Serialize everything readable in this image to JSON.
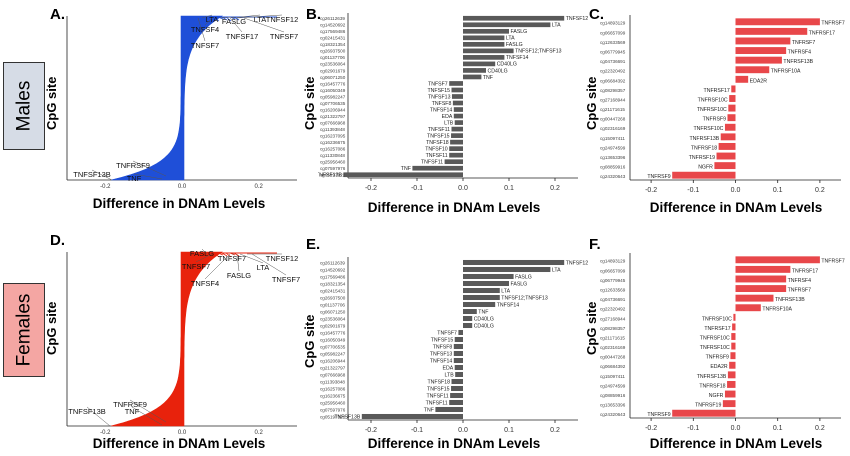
{
  "row_labels": {
    "males": "Males",
    "females": "Females"
  },
  "colors": {
    "males_fill": "#1f4fd8",
    "females_fill": "#e8220c",
    "bar_gray": "#595959",
    "bar_red": "#e8474a",
    "males_box": "#d6dce6",
    "females_box": "#f4a6a3"
  },
  "chart_data": [
    {
      "panel": "A",
      "type": "area",
      "xlabel": "Difference in DNAm Levels",
      "ylabel": "CpG site",
      "xlim": [
        -0.3,
        0.3
      ],
      "xticks": [
        "-0.2",
        "0.0",
        "0.2"
      ],
      "annotations": [
        "LTA",
        "FASLG",
        "LTA",
        "TNFSF12",
        "TNFSF4",
        "TNFSF17",
        "TNFSF7",
        "TNFSF7",
        "TNFRSF9",
        "TNFSF13B",
        "TNF"
      ],
      "grid": false
    },
    {
      "panel": "B",
      "type": "bar",
      "xlabel": "Difference in DNAm Levels",
      "ylabel": "CpG site",
      "xlim": [
        -0.25,
        0.25
      ],
      "xticks": [
        "-0.2",
        "-0.1",
        "0.0",
        "0.1",
        "0.2"
      ],
      "categories": [
        "cg26112639",
        "cg14520692",
        "cg17569486",
        "cg02415431",
        "cg18321354",
        "cg26937500",
        "cg01137706",
        "cg23536064",
        "cg02901679",
        "cg06071250",
        "cg16457776",
        "cg16050349",
        "cg05982247",
        "cg07706535",
        "cg16206944",
        "cg21322797",
        "cg07666968",
        "cg11393848",
        "cg16237095",
        "cg16236675",
        "cg16257086",
        "cg11330848",
        "cg25956460",
        "cg07597976",
        "cg05197322"
      ],
      "values": [
        0.22,
        0.19,
        0.1,
        0.09,
        0.09,
        0.11,
        0.09,
        0.07,
        0.05,
        0.04,
        -0.03,
        -0.025,
        -0.024,
        -0.022,
        -0.02,
        -0.02,
        -0.018,
        -0.025,
        -0.026,
        -0.028,
        -0.03,
        -0.03,
        -0.04,
        -0.11,
        -0.26
      ],
      "bar_labels": [
        "TNFSF12",
        "LTA",
        "FASLG",
        "LTA",
        "FASLG",
        "TNFSF12;TNFSF13",
        "TNFSF14",
        "CD40LG",
        "CD40LG",
        "TNF",
        "TNFSF7",
        "TNFSF15",
        "TNFSF13",
        "TNFSF8",
        "TNFSF14",
        "EDA",
        "LTB",
        "TNFSF11",
        "TNFSF15",
        "TNFSF18",
        "TNFSF10",
        "TNFSF11",
        "TNFSF11",
        "TNF",
        "TNFSF13B"
      ]
    },
    {
      "panel": "C",
      "type": "bar",
      "xlabel": "Difference in DNAm Levels",
      "ylabel": "CpG site",
      "xlim": [
        -0.25,
        0.25
      ],
      "xticks": [
        "-0.2",
        "-0.1",
        "0.0",
        "0.1",
        "0.2"
      ],
      "categories": [
        "cg14893129",
        "cg06657099",
        "cg12633569",
        "cg06779945",
        "cg04736691",
        "cg22320492",
        "cg06684392",
        "cg08298357",
        "cg27168944",
        "cg21171615",
        "cg00447268",
        "cg02316169",
        "cg15097411",
        "cg24974599",
        "cg13653396",
        "cg08859916",
        "cg24320643"
      ],
      "values": [
        0.2,
        0.17,
        0.13,
        0.12,
        0.11,
        0.08,
        0.03,
        -0.01,
        -0.015,
        -0.017,
        -0.019,
        -0.025,
        -0.035,
        -0.04,
        -0.045,
        -0.05,
        -0.15
      ],
      "bar_labels": [
        "TNFRSF7",
        "TNFRSF17",
        "TNFRSF7",
        "TNFRSF4",
        "TNFRSF13B",
        "TNFRSF10A",
        "EDA2R",
        "TNFRSF17",
        "TNFRSF10C",
        "TNFRSF10C",
        "TNFRSF9",
        "TNFRSF10C",
        "TNFRSF13B",
        "TNFRSF18",
        "TNFRSF19",
        "NGFR",
        "TNFRSF9"
      ]
    },
    {
      "panel": "D",
      "type": "area",
      "xlabel": "Difference in DNAm Levels",
      "ylabel": "CpG site",
      "xlim": [
        -0.3,
        0.3
      ],
      "xticks": [
        "-0.2",
        "0.0",
        "0.2"
      ],
      "annotations": [
        "FASLG",
        "TNFSF7",
        "TNFSF12",
        "TNFSF7",
        "LTA",
        "TNFSF4",
        "FASLG",
        "TNFSF7",
        "TNFRSF9",
        "TNFSF13B",
        "TNF"
      ],
      "grid": false
    },
    {
      "panel": "E",
      "type": "bar",
      "xlabel": "Difference in DNAm Levels",
      "ylabel": "CpG site",
      "xlim": [
        -0.25,
        0.25
      ],
      "xticks": [
        "-0.2",
        "-0.1",
        "0.0",
        "0.1",
        "0.2"
      ],
      "categories": [
        "cg26112639",
        "cg14520692",
        "cg17569486",
        "cg18321354",
        "cg02415431",
        "cg26937500",
        "cg01137706",
        "cg06071250",
        "cg23536064",
        "cg02901679",
        "cg16457776",
        "cg16050349",
        "cg07706535",
        "cg05982247",
        "cg16206944",
        "cg21322797",
        "cg07666968",
        "cg11393848",
        "cg16257086",
        "cg16236675",
        "cg25956460",
        "cg07597976",
        "cg05197322"
      ],
      "values": [
        0.22,
        0.19,
        0.11,
        0.1,
        0.08,
        0.08,
        0.07,
        0.03,
        0.02,
        0.02,
        -0.01,
        -0.018,
        -0.02,
        -0.02,
        -0.02,
        -0.018,
        -0.017,
        -0.025,
        -0.026,
        -0.028,
        -0.03,
        -0.06,
        -0.22
      ],
      "bar_labels": [
        "TNFSF12",
        "LTA",
        "FASLG",
        "FASLG",
        "LTA",
        "TNFSF12;TNFSF13",
        "TNFSF14",
        "TNF",
        "CD40LG",
        "CD40LG",
        "TNFSF7",
        "TNFSF15",
        "TNFSF8",
        "TNFSF13",
        "TNFSF14",
        "EDA",
        "LTB",
        "TNFSF18",
        "TNFSF15",
        "TNFSF11",
        "TNFSF11",
        "TNF",
        "TNFSF13B"
      ]
    },
    {
      "panel": "F",
      "type": "bar",
      "xlabel": "Difference in DNAm Levels",
      "ylabel": "CpG site",
      "xlim": [
        -0.25,
        0.25
      ],
      "xticks": [
        "-0.2",
        "-0.1",
        "0.0",
        "0.1",
        "0.2"
      ],
      "categories": [
        "cg14893129",
        "cg06657099",
        "cg06779945",
        "cg12633569",
        "cg04736691",
        "cg22320492",
        "cg27168944",
        "cg08298357",
        "cg21171615",
        "cg02316169",
        "cg00447268",
        "cg06684392",
        "cg15097411",
        "cg24974599",
        "cg08859916",
        "cg13653396",
        "cg24320643"
      ],
      "values": [
        0.2,
        0.13,
        0.12,
        0.12,
        0.09,
        0.06,
        -0.005,
        -0.008,
        -0.01,
        -0.01,
        -0.012,
        -0.015,
        -0.018,
        -0.02,
        -0.025,
        -0.03,
        -0.15
      ],
      "bar_labels": [
        "TNFRSF7",
        "TNFRSF17",
        "TNFRSF4",
        "TNFRSF7",
        "TNFRSF13B",
        "TNFRSF10A",
        "TNFRSF10C",
        "TNFRSF17",
        "TNFRSF10C",
        "TNFRSF10C",
        "TNFRSF9",
        "EDA2R",
        "TNFRSF13B",
        "TNFRSF18",
        "NGFR",
        "TNFRSF19",
        "TNFRSF9"
      ]
    }
  ]
}
